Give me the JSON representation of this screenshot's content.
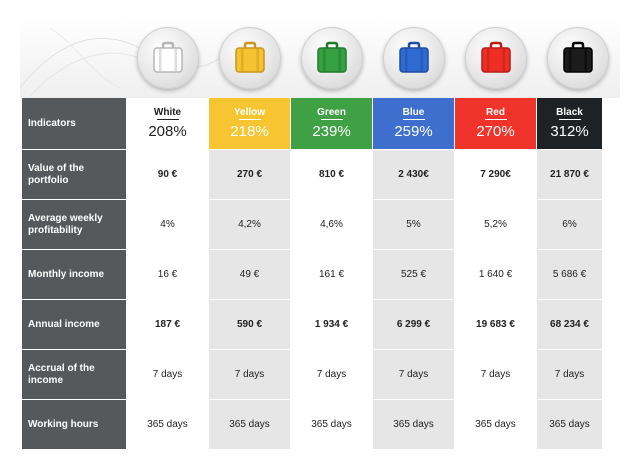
{
  "row_header_title": "Indicators",
  "columns": [
    {
      "name": "White",
      "percent": "208%",
      "bg": "#ffffff",
      "text": "#222222",
      "case_color": "#ffffff",
      "case_stroke": "#b5b5b5"
    },
    {
      "name": "Yellow",
      "percent": "218%",
      "bg": "#f7c531",
      "text": "#ffffff",
      "case_color": "#f5c232",
      "case_stroke": "#c8961a"
    },
    {
      "name": "Green",
      "percent": "239%",
      "bg": "#3fa144",
      "text": "#ffffff",
      "case_color": "#37a041",
      "case_stroke": "#1f7a2a"
    },
    {
      "name": "Blue",
      "percent": "259%",
      "bg": "#3f6fce",
      "text": "#ffffff",
      "case_color": "#2f6bd1",
      "case_stroke": "#1c4da3"
    },
    {
      "name": "Red",
      "percent": "270%",
      "bg": "#f0342b",
      "text": "#ffffff",
      "case_color": "#ee2d25",
      "case_stroke": "#b81c16"
    },
    {
      "name": "Black",
      "percent": "312%",
      "bg": "#1f2224",
      "text": "#ffffff",
      "case_color": "#1c1c1c",
      "case_stroke": "#000000"
    }
  ],
  "rows": [
    {
      "label": "Value of the portfolio",
      "bold": true,
      "values": [
        "90 €",
        "270 €",
        "810 €",
        "2 430€",
        "7 290€",
        "21 870 €"
      ]
    },
    {
      "label": "Average weekly profitability",
      "bold": false,
      "values": [
        "4%",
        "4,2%",
        "4,6%",
        "5%",
        "5,2%",
        "6%"
      ]
    },
    {
      "label": "Monthly income",
      "bold": false,
      "values": [
        "16 €",
        "49 €",
        "161 €",
        "525 €",
        "1 640 €",
        "5 686 €"
      ]
    },
    {
      "label": "Annual income",
      "bold": true,
      "values": [
        "187 €",
        "590 €",
        "1 934 €",
        "6 299 €",
        "19 683 €",
        "68 234 €"
      ]
    },
    {
      "label": "Accrual of the income",
      "bold": false,
      "values": [
        "7 days",
        "7 days",
        "7 days",
        "7 days",
        "7 days",
        "7 days"
      ]
    },
    {
      "label": "Working hours",
      "bold": false,
      "values": [
        "365 days",
        "365 days",
        "365 days",
        "365 days",
        "365 days",
        "365 days"
      ]
    }
  ]
}
